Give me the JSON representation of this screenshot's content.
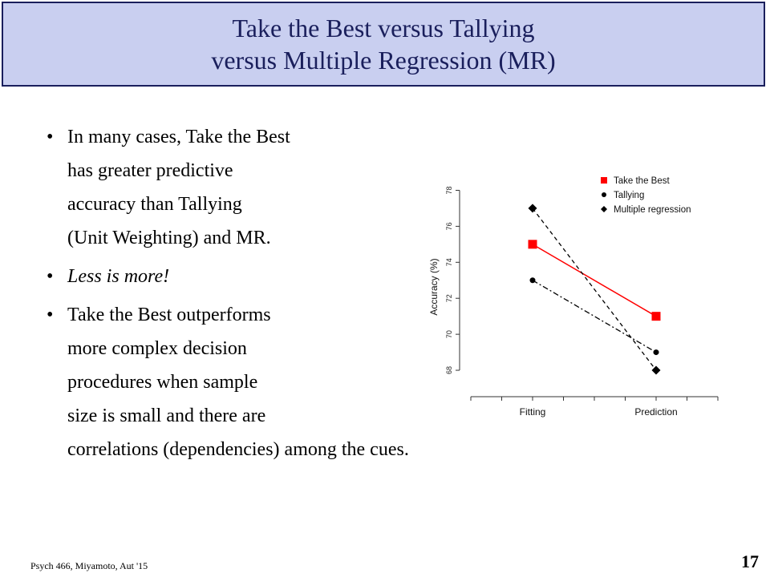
{
  "title": {
    "line1": "Take the Best versus Tallying",
    "line2": "versus Multiple Regression (MR)"
  },
  "bullets": [
    {
      "lines": [
        "In many cases, Take the Best",
        "has greater predictive",
        "accuracy than Tallying",
        "(Unit Weighting) and MR."
      ]
    },
    {
      "lines": [
        "Less is more!"
      ]
    },
    {
      "lines": [
        "Take the Best outperforms",
        "more complex decision",
        "procedures when sample",
        "size is small and there are",
        "correlations (dependencies) among the cues."
      ]
    }
  ],
  "footer": {
    "source": "Psych 466, Miyamoto, Aut '15",
    "page": "17"
  },
  "chart_data": {
    "type": "line",
    "categories": [
      "Fitting",
      "Prediction"
    ],
    "ylabel": "Accuracy (%)",
    "xlabel": "",
    "ylim": [
      67.2,
      78.6
    ],
    "yticks": [
      68,
      70,
      72,
      74,
      76,
      78
    ],
    "legend_position": "top-right",
    "series": [
      {
        "name": "Take the Best",
        "values": [
          75,
          71
        ],
        "color": "#ff0000",
        "marker": "square",
        "line": "solid"
      },
      {
        "name": "Tallying",
        "values": [
          73,
          69
        ],
        "color": "#000000",
        "marker": "circle",
        "line": "dashdot"
      },
      {
        "name": "Multiple regression",
        "values": [
          77,
          68
        ],
        "color": "#000000",
        "marker": "diamond",
        "line": "dashed"
      }
    ]
  }
}
